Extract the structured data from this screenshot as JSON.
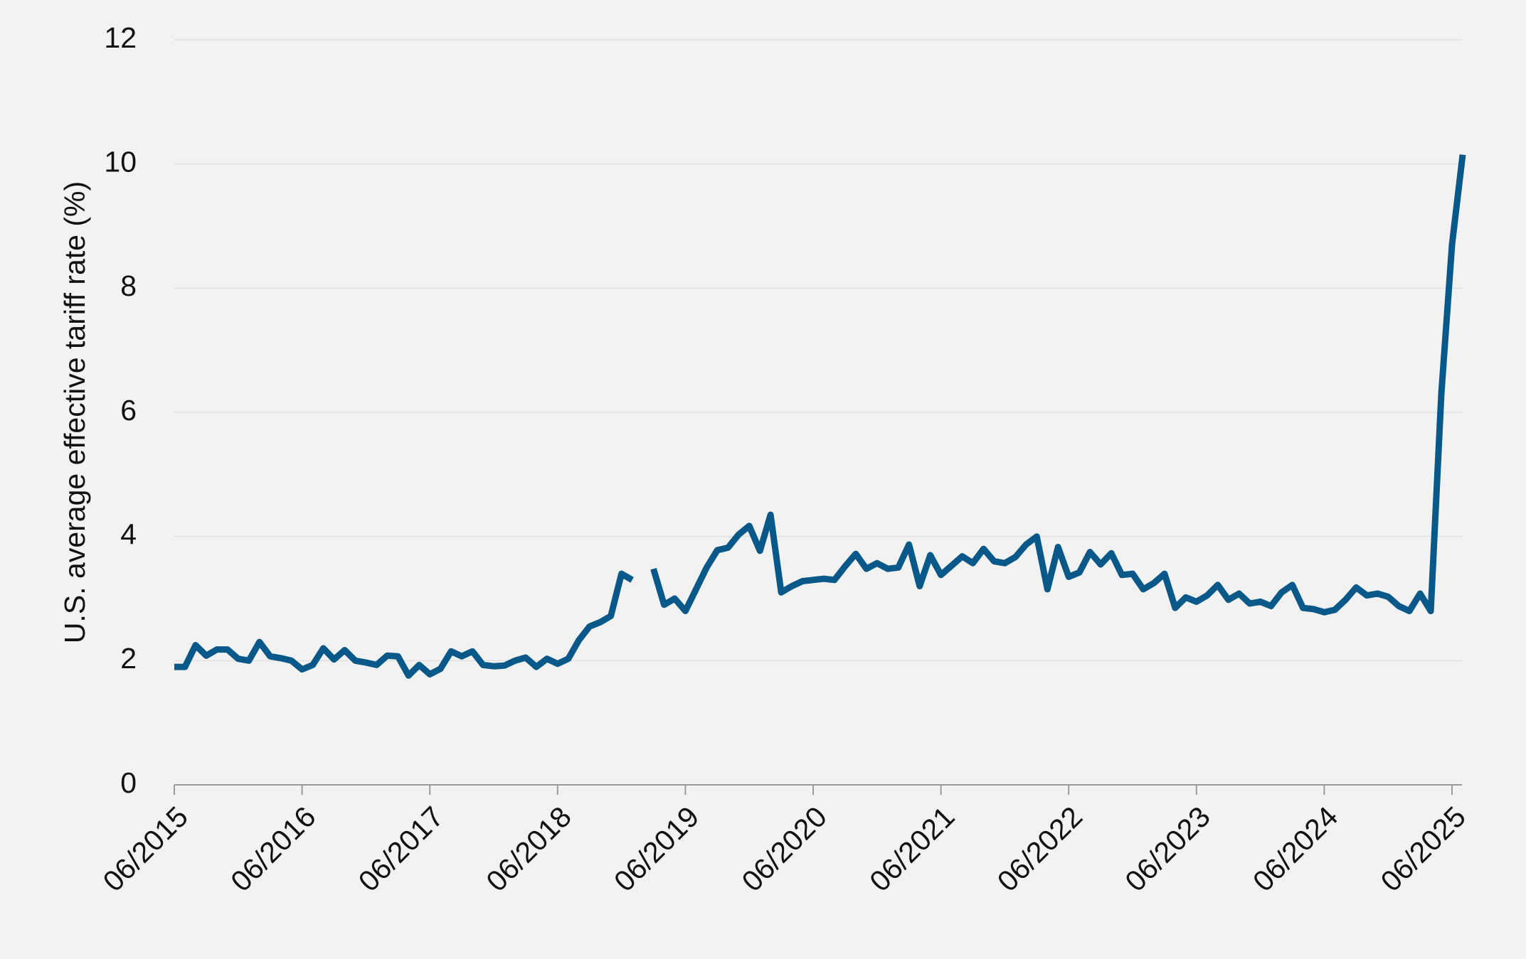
{
  "chart_data": {
    "type": "line",
    "ylabel": "U.S. average effective tariff rate (%)",
    "x": [
      "06/2015",
      "07/2015",
      "08/2015",
      "09/2015",
      "10/2015",
      "11/2015",
      "12/2015",
      "01/2016",
      "02/2016",
      "03/2016",
      "04/2016",
      "05/2016",
      "06/2016",
      "07/2016",
      "08/2016",
      "09/2016",
      "10/2016",
      "11/2016",
      "12/2016",
      "01/2017",
      "02/2017",
      "03/2017",
      "04/2017",
      "05/2017",
      "06/2017",
      "07/2017",
      "08/2017",
      "09/2017",
      "10/2017",
      "11/2017",
      "12/2017",
      "01/2018",
      "02/2018",
      "03/2018",
      "04/2018",
      "05/2018",
      "06/2018",
      "07/2018",
      "08/2018",
      "09/2018",
      "10/2018",
      "11/2018",
      "12/2018",
      "01/2019",
      "02/2019",
      "03/2019",
      "04/2019",
      "05/2019",
      "06/2019",
      "07/2019",
      "08/2019",
      "09/2019",
      "10/2019",
      "11/2019",
      "12/2019",
      "01/2020",
      "02/2020",
      "03/2020",
      "04/2020",
      "05/2020",
      "06/2020",
      "07/2020",
      "08/2020",
      "09/2020",
      "10/2020",
      "11/2020",
      "12/2020",
      "01/2021",
      "02/2021",
      "03/2021",
      "04/2021",
      "05/2021",
      "06/2021",
      "07/2021",
      "08/2021",
      "09/2021",
      "10/2021",
      "11/2021",
      "12/2021",
      "01/2022",
      "02/2022",
      "03/2022",
      "04/2022",
      "05/2022",
      "06/2022",
      "07/2022",
      "08/2022",
      "09/2022",
      "10/2022",
      "11/2022",
      "12/2022",
      "01/2023",
      "02/2023",
      "03/2023",
      "04/2023",
      "05/2023",
      "06/2023",
      "07/2023",
      "08/2023",
      "09/2023",
      "10/2023",
      "11/2023",
      "12/2023",
      "01/2024",
      "02/2024",
      "03/2024",
      "04/2024",
      "05/2024",
      "06/2024",
      "07/2024",
      "08/2024",
      "09/2024",
      "10/2024",
      "11/2024",
      "12/2024",
      "01/2025",
      "02/2025",
      "03/2025",
      "04/2025",
      "05/2025",
      "06/2025",
      "07/2025"
    ],
    "values": [
      1.9,
      1.9,
      2.25,
      2.08,
      2.18,
      2.18,
      2.03,
      2.0,
      2.3,
      2.07,
      2.04,
      2.0,
      1.86,
      1.93,
      2.2,
      2.02,
      2.17,
      2.0,
      1.97,
      1.93,
      2.08,
      2.07,
      1.76,
      1.93,
      1.78,
      1.87,
      2.15,
      2.07,
      2.15,
      1.93,
      1.91,
      1.92,
      2.0,
      2.05,
      1.9,
      2.03,
      1.95,
      2.03,
      2.33,
      2.55,
      2.62,
      2.72,
      3.4,
      3.3,
      null,
      3.48,
      2.9,
      3.0,
      2.8,
      3.15,
      3.5,
      3.78,
      3.82,
      4.03,
      4.17,
      3.77,
      4.35,
      3.1,
      3.2,
      3.28,
      3.3,
      3.32,
      3.3,
      3.52,
      3.72,
      3.48,
      3.57,
      3.48,
      3.5,
      3.87,
      3.2,
      3.7,
      3.38,
      3.53,
      3.68,
      3.57,
      3.8,
      3.6,
      3.57,
      3.67,
      3.87,
      4.0,
      3.15,
      3.83,
      3.35,
      3.42,
      3.75,
      3.55,
      3.73,
      3.38,
      3.4,
      3.15,
      3.25,
      3.4,
      2.85,
      3.02,
      2.95,
      3.05,
      3.22,
      2.98,
      3.08,
      2.92,
      2.95,
      2.88,
      3.1,
      3.22,
      2.85,
      2.83,
      2.78,
      2.82,
      2.98,
      3.18,
      3.05,
      3.08,
      3.03,
      2.88,
      2.8,
      3.08,
      2.8,
      6.3,
      8.7,
      10.15
    ],
    "color": "#08588a",
    "xticks": [
      "06/2015",
      "06/2016",
      "06/2017",
      "06/2018",
      "06/2019",
      "06/2020",
      "06/2021",
      "06/2022",
      "06/2023",
      "06/2024",
      "06/2025"
    ],
    "ylim": [
      0,
      12
    ],
    "yticks": [
      0,
      2,
      4,
      6,
      8,
      10,
      12
    ],
    "grid": true
  }
}
